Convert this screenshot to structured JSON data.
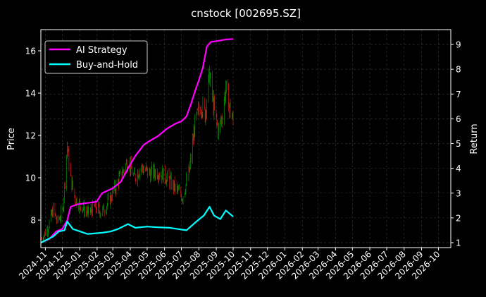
{
  "chart_data": {
    "type": "line",
    "title": "cnstock [002695.SZ]",
    "ylabel_left": "Price",
    "ylabel_right": "Return",
    "ylim_left": [
      6.7,
      17.0
    ],
    "ylim_right": [
      0.8,
      9.6
    ],
    "xlim": [
      "2024-10-24",
      "2026-10-23"
    ],
    "grid": true,
    "legend_position": "top-left",
    "x_ticks": [
      "2024-11",
      "2024-12",
      "2025-01",
      "2025-02",
      "2025-03",
      "2025-04",
      "2025-05",
      "2025-06",
      "2025-07",
      "2025-08",
      "2025-09",
      "2025-10",
      "2025-11",
      "2025-12",
      "2026-01",
      "2026-02",
      "2026-03",
      "2026-04",
      "2026-05",
      "2026-06",
      "2026-07",
      "2026-08",
      "2026-09",
      "2026-10"
    ],
    "y_ticks_left": [
      8,
      10,
      12,
      14,
      16
    ],
    "y_ticks_right": [
      1,
      2,
      3,
      4,
      5,
      6,
      7,
      8,
      9
    ],
    "colors": {
      "background": "#000000",
      "up": "#00b000",
      "down": "#ff1a1a",
      "ai": "#ff00ff",
      "bh": "#00ffff",
      "grid": "#3a3a3a"
    },
    "price": [
      {
        "x": "2024-10-25",
        "y": 7.1
      },
      {
        "x": "2024-11-05",
        "y": 7.6
      },
      {
        "x": "2024-11-15",
        "y": 8.5
      },
      {
        "x": "2024-11-22",
        "y": 7.9
      },
      {
        "x": "2024-12-02",
        "y": 8.4
      },
      {
        "x": "2024-12-10",
        "y": 11.5
      },
      {
        "x": "2024-12-16",
        "y": 10.0
      },
      {
        "x": "2024-12-24",
        "y": 9.0
      },
      {
        "x": "2025-01-06",
        "y": 8.6
      },
      {
        "x": "2025-01-15",
        "y": 8.3
      },
      {
        "x": "2025-01-27",
        "y": 8.6
      },
      {
        "x": "2025-02-10",
        "y": 8.4
      },
      {
        "x": "2025-02-20",
        "y": 8.8
      },
      {
        "x": "2025-03-05",
        "y": 9.5
      },
      {
        "x": "2025-03-17",
        "y": 10.2
      },
      {
        "x": "2025-03-28",
        "y": 10.8
      },
      {
        "x": "2025-04-08",
        "y": 10.0
      },
      {
        "x": "2025-04-20",
        "y": 10.5
      },
      {
        "x": "2025-05-06",
        "y": 10.2
      },
      {
        "x": "2025-05-20",
        "y": 10.3
      },
      {
        "x": "2025-06-05",
        "y": 10.0
      },
      {
        "x": "2025-06-20",
        "y": 9.5
      },
      {
        "x": "2025-07-03",
        "y": 9.1
      },
      {
        "x": "2025-07-15",
        "y": 10.3
      },
      {
        "x": "2025-07-25",
        "y": 12.5
      },
      {
        "x": "2025-08-05",
        "y": 13.5
      },
      {
        "x": "2025-08-12",
        "y": 13.0
      },
      {
        "x": "2025-08-20",
        "y": 14.9
      },
      {
        "x": "2025-08-28",
        "y": 13.2
      },
      {
        "x": "2025-09-05",
        "y": 12.2
      },
      {
        "x": "2025-09-12",
        "y": 13.0
      },
      {
        "x": "2025-09-18",
        "y": 14.3
      },
      {
        "x": "2025-09-25",
        "y": 13.3
      },
      {
        "x": "2025-10-01",
        "y": 12.6
      }
    ],
    "series": [
      {
        "name": "AI Strategy",
        "color": "#ff00ff",
        "points": [
          {
            "x": "2024-10-24",
            "y": 1.0
          },
          {
            "x": "2024-11-08",
            "y": 1.15
          },
          {
            "x": "2024-11-20",
            "y": 1.45
          },
          {
            "x": "2024-12-01",
            "y": 1.55
          },
          {
            "x": "2024-12-10",
            "y": 1.9
          },
          {
            "x": "2024-12-16",
            "y": 2.45
          },
          {
            "x": "2024-12-28",
            "y": 2.55
          },
          {
            "x": "2025-01-31",
            "y": 2.65
          },
          {
            "x": "2025-02-10",
            "y": 3.0
          },
          {
            "x": "2025-03-01",
            "y": 3.2
          },
          {
            "x": "2025-03-15",
            "y": 3.45
          },
          {
            "x": "2025-03-28",
            "y": 4.0
          },
          {
            "x": "2025-04-10",
            "y": 4.5
          },
          {
            "x": "2025-04-25",
            "y": 4.95
          },
          {
            "x": "2025-05-05",
            "y": 5.1
          },
          {
            "x": "2025-05-20",
            "y": 5.3
          },
          {
            "x": "2025-06-05",
            "y": 5.6
          },
          {
            "x": "2025-06-20",
            "y": 5.8
          },
          {
            "x": "2025-07-01",
            "y": 5.9
          },
          {
            "x": "2025-07-10",
            "y": 6.1
          },
          {
            "x": "2025-07-18",
            "y": 6.6
          },
          {
            "x": "2025-07-25",
            "y": 7.1
          },
          {
            "x": "2025-08-01",
            "y": 7.55
          },
          {
            "x": "2025-08-08",
            "y": 8.05
          },
          {
            "x": "2025-08-15",
            "y": 8.9
          },
          {
            "x": "2025-08-22",
            "y": 9.1
          },
          {
            "x": "2025-09-05",
            "y": 9.15
          },
          {
            "x": "2025-09-18",
            "y": 9.2
          },
          {
            "x": "2025-10-01",
            "y": 9.22
          }
        ]
      },
      {
        "name": "Buy-and-Hold",
        "color": "#00ffff",
        "points": [
          {
            "x": "2024-10-24",
            "y": 1.0
          },
          {
            "x": "2024-11-15",
            "y": 1.25
          },
          {
            "x": "2024-11-25",
            "y": 1.45
          },
          {
            "x": "2024-12-05",
            "y": 1.5
          },
          {
            "x": "2024-12-10",
            "y": 1.85
          },
          {
            "x": "2024-12-20",
            "y": 1.55
          },
          {
            "x": "2025-01-15",
            "y": 1.35
          },
          {
            "x": "2025-02-10",
            "y": 1.4
          },
          {
            "x": "2025-02-25",
            "y": 1.45
          },
          {
            "x": "2025-03-10",
            "y": 1.55
          },
          {
            "x": "2025-03-28",
            "y": 1.75
          },
          {
            "x": "2025-04-10",
            "y": 1.6
          },
          {
            "x": "2025-05-01",
            "y": 1.65
          },
          {
            "x": "2025-05-20",
            "y": 1.62
          },
          {
            "x": "2025-06-10",
            "y": 1.6
          },
          {
            "x": "2025-06-25",
            "y": 1.55
          },
          {
            "x": "2025-07-10",
            "y": 1.5
          },
          {
            "x": "2025-07-25",
            "y": 1.8
          },
          {
            "x": "2025-08-10",
            "y": 2.1
          },
          {
            "x": "2025-08-20",
            "y": 2.45
          },
          {
            "x": "2025-08-28",
            "y": 2.1
          },
          {
            "x": "2025-09-08",
            "y": 1.95
          },
          {
            "x": "2025-09-18",
            "y": 2.3
          },
          {
            "x": "2025-10-01",
            "y": 2.05
          }
        ]
      }
    ]
  }
}
